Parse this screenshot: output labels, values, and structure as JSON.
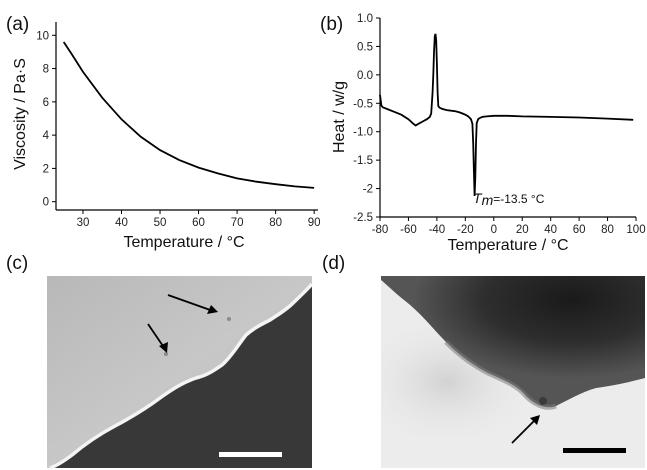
{
  "chart_data": [
    {
      "panel": "(a)",
      "type": "line",
      "xlabel": "Temperature / °C",
      "ylabel": "Viscosity / Pa·S",
      "xlim": [
        23,
        91
      ],
      "ylim": [
        -0.5,
        10.8
      ],
      "xticks": [
        30,
        40,
        50,
        60,
        70,
        80,
        90
      ],
      "yticks": [
        0,
        2,
        4,
        6,
        8,
        10
      ],
      "series": [
        {
          "x": [
            25,
            27,
            30,
            35,
            40,
            45,
            50,
            55,
            60,
            65,
            70,
            75,
            80,
            85,
            90
          ],
          "values": [
            9.6,
            8.9,
            7.8,
            6.25,
            4.95,
            3.9,
            3.1,
            2.5,
            2.05,
            1.7,
            1.4,
            1.2,
            1.05,
            0.92,
            0.83
          ]
        }
      ]
    },
    {
      "panel": "(b)",
      "type": "line",
      "xlabel": "Temperature / °C",
      "ylabel": "Heat / w/g",
      "xlim": [
        -80,
        100
      ],
      "ylim": [
        -2.5,
        1.0
      ],
      "xticks": [
        -80,
        -60,
        -40,
        -20,
        0,
        20,
        40,
        60,
        80,
        100
      ],
      "yticks": [
        -2.5,
        -2.0,
        -1.5,
        -1.0,
        -0.5,
        0.0,
        0.5,
        1.0
      ],
      "annotation": {
        "prefix": "T",
        "subscript": "m",
        "text": "=-13.5 °C",
        "x": -13.5,
        "y": -2.13
      },
      "series": [
        {
          "x": [
            -80,
            -79.5,
            -79,
            -78,
            -75,
            -70,
            -65,
            -60,
            -57,
            -55,
            -53,
            -50,
            -47,
            -45,
            -44,
            -43,
            -42.5,
            -42,
            -41.5,
            -41,
            -40.5,
            -40,
            -39.5,
            -39,
            -38,
            -36,
            -33,
            -30,
            -27,
            -24,
            -22,
            -20,
            -18,
            -16,
            -15,
            -14.5,
            -14,
            -13.5,
            -13,
            -12.5,
            -12,
            -11,
            -10,
            -8,
            -5,
            0,
            10,
            20,
            40,
            60,
            80,
            98
          ],
          "values": [
            -0.35,
            -0.45,
            -0.54,
            -0.57,
            -0.6,
            -0.65,
            -0.7,
            -0.78,
            -0.85,
            -0.89,
            -0.86,
            -0.82,
            -0.78,
            -0.74,
            -0.68,
            -0.3,
            0.0,
            0.4,
            0.68,
            0.72,
            0.6,
            0.2,
            -0.3,
            -0.55,
            -0.58,
            -0.6,
            -0.62,
            -0.63,
            -0.64,
            -0.66,
            -0.68,
            -0.7,
            -0.73,
            -0.78,
            -0.86,
            -1.2,
            -1.7,
            -2.13,
            -1.8,
            -1.2,
            -0.85,
            -0.78,
            -0.76,
            -0.74,
            -0.73,
            -0.72,
            -0.72,
            -0.73,
            -0.74,
            -0.75,
            -0.77,
            -0.79
          ]
        }
      ]
    }
  ],
  "images": [
    {
      "panel": "(c)",
      "arrows": 2,
      "scale_bar_color": "#ffffff"
    },
    {
      "panel": "(d)",
      "arrows": 1,
      "scale_bar_color": "#000000"
    }
  ]
}
